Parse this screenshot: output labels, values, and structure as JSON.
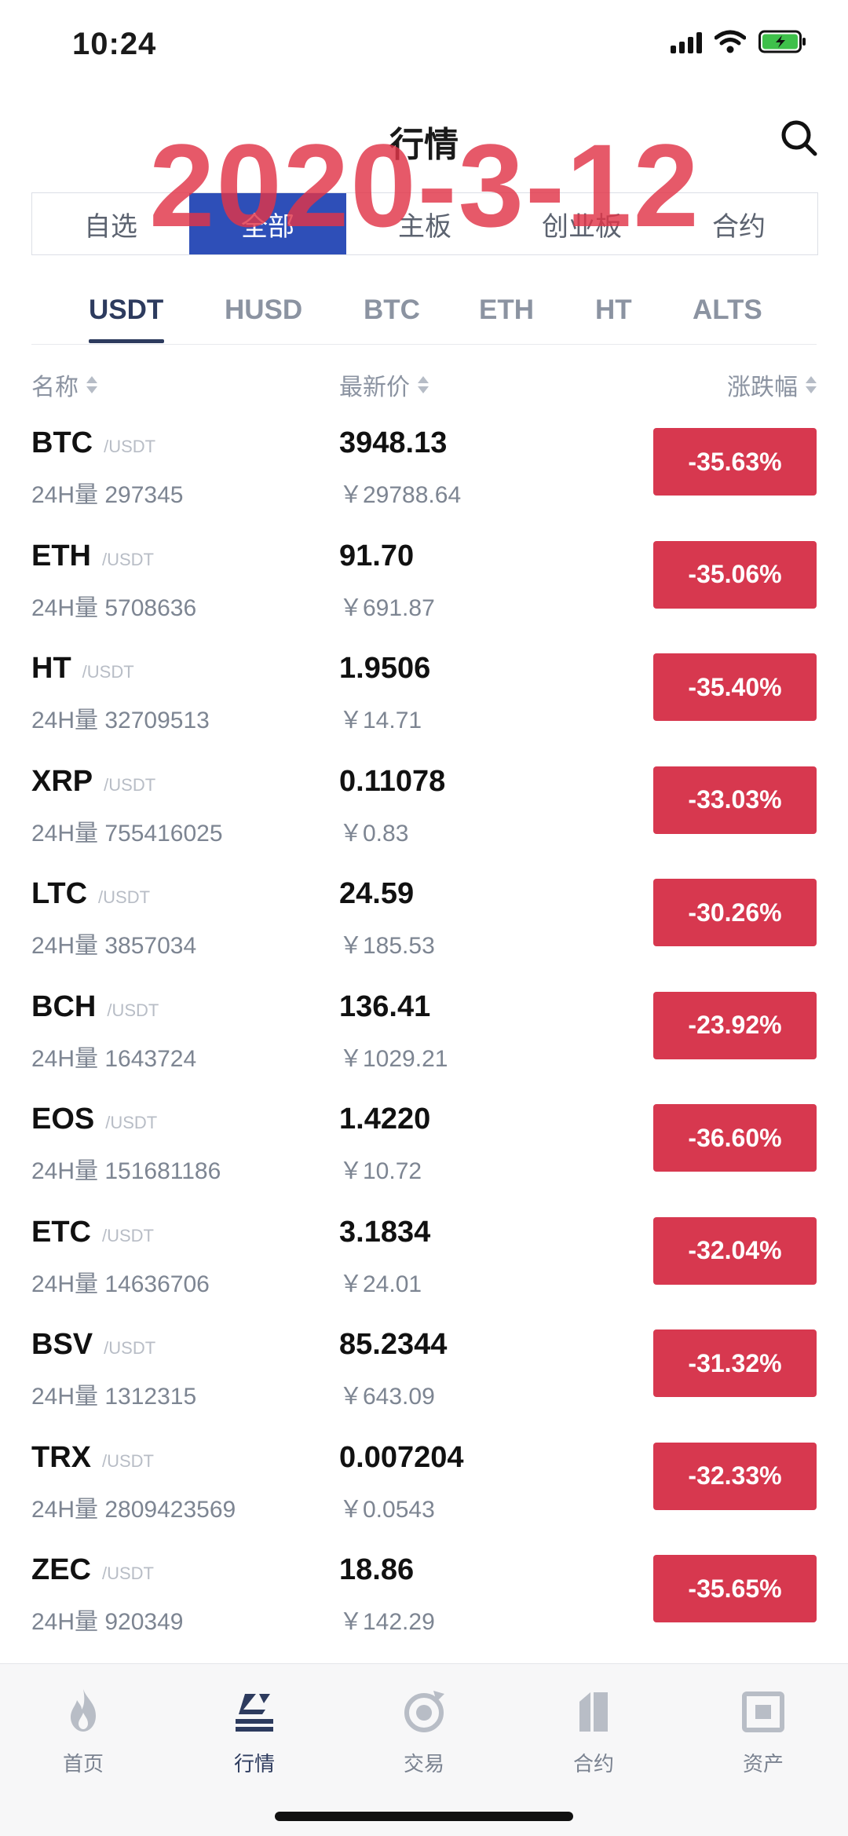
{
  "status_bar": {
    "time": "10:24"
  },
  "header": {
    "title": "行情",
    "watermark": "2020-3-12"
  },
  "segments": [
    {
      "label": "自选",
      "active": false
    },
    {
      "label": "全部",
      "active": true
    },
    {
      "label": "主板",
      "active": false
    },
    {
      "label": "创业板",
      "active": false
    },
    {
      "label": "合约",
      "active": false
    }
  ],
  "quote_tabs": [
    {
      "label": "USDT",
      "active": true
    },
    {
      "label": "HUSD",
      "active": false
    },
    {
      "label": "BTC",
      "active": false
    },
    {
      "label": "ETH",
      "active": false
    },
    {
      "label": "HT",
      "active": false
    },
    {
      "label": "ALTS",
      "active": false
    }
  ],
  "columns": {
    "name": "名称",
    "price": "最新价",
    "change": "涨跌幅"
  },
  "rows": [
    {
      "symbol": "BTC",
      "quote": "/USDT",
      "volume": "24H量 297345",
      "price": "3948.13",
      "cny": "￥29788.64",
      "change": "-35.63%"
    },
    {
      "symbol": "ETH",
      "quote": "/USDT",
      "volume": "24H量 5708636",
      "price": "91.70",
      "cny": "￥691.87",
      "change": "-35.06%"
    },
    {
      "symbol": "HT",
      "quote": "/USDT",
      "volume": "24H量 32709513",
      "price": "1.9506",
      "cny": "￥14.71",
      "change": "-35.40%"
    },
    {
      "symbol": "XRP",
      "quote": "/USDT",
      "volume": "24H量 755416025",
      "price": "0.11078",
      "cny": "￥0.83",
      "change": "-33.03%"
    },
    {
      "symbol": "LTC",
      "quote": "/USDT",
      "volume": "24H量 3857034",
      "price": "24.59",
      "cny": "￥185.53",
      "change": "-30.26%"
    },
    {
      "symbol": "BCH",
      "quote": "/USDT",
      "volume": "24H量 1643724",
      "price": "136.41",
      "cny": "￥1029.21",
      "change": "-23.92%"
    },
    {
      "symbol": "EOS",
      "quote": "/USDT",
      "volume": "24H量 151681186",
      "price": "1.4220",
      "cny": "￥10.72",
      "change": "-36.60%"
    },
    {
      "symbol": "ETC",
      "quote": "/USDT",
      "volume": "24H量 14636706",
      "price": "3.1834",
      "cny": "￥24.01",
      "change": "-32.04%"
    },
    {
      "symbol": "BSV",
      "quote": "/USDT",
      "volume": "24H量 1312315",
      "price": "85.2344",
      "cny": "￥643.09",
      "change": "-31.32%"
    },
    {
      "symbol": "TRX",
      "quote": "/USDT",
      "volume": "24H量 2809423569",
      "price": "0.007204",
      "cny": "￥0.0543",
      "change": "-32.33%"
    },
    {
      "symbol": "ZEC",
      "quote": "/USDT",
      "volume": "24H量 920349",
      "price": "18.86",
      "cny": "￥142.29",
      "change": "-35.65%"
    }
  ],
  "tab_bar": [
    {
      "label": "首页",
      "icon": "flame-icon",
      "active": false
    },
    {
      "label": "行情",
      "icon": "market-icon",
      "active": true
    },
    {
      "label": "交易",
      "icon": "exchange-icon",
      "active": false
    },
    {
      "label": "合约",
      "icon": "contract-icon",
      "active": false
    },
    {
      "label": "资产",
      "icon": "wallet-icon",
      "active": false
    }
  ],
  "colors": {
    "accent": "#2e4fb8",
    "down": "#d7384f",
    "tab_active": "#2d3b5e",
    "watermark": "#e13448"
  }
}
